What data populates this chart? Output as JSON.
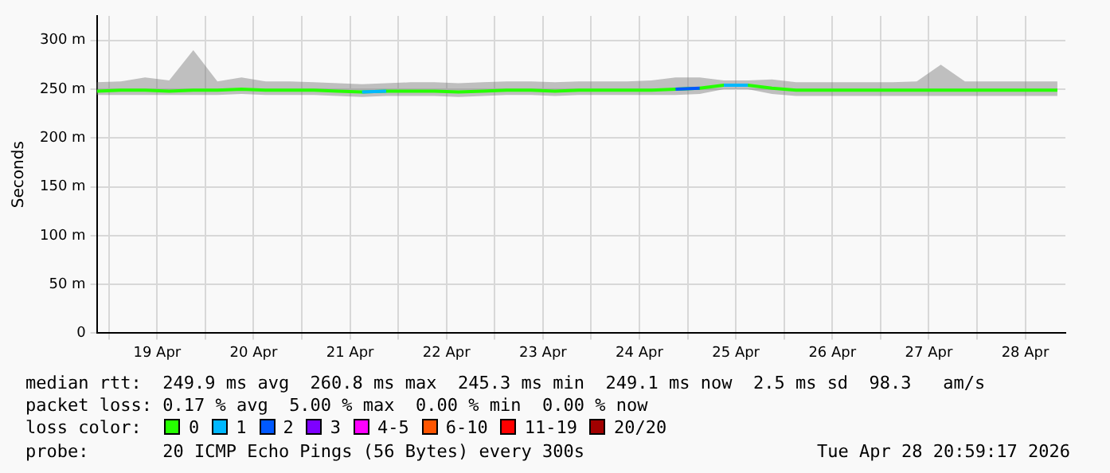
{
  "chart_data": {
    "type": "line",
    "ylabel": "Seconds",
    "x": [
      "2026-04-18T21:00",
      "2026-04-19T03:00",
      "2026-04-19T09:00",
      "2026-04-19T15:00",
      "2026-04-19T21:00",
      "2026-04-20T03:00",
      "2026-04-20T09:00",
      "2026-04-20T15:00",
      "2026-04-20T21:00",
      "2026-04-21T03:00",
      "2026-04-21T09:00",
      "2026-04-21T15:00",
      "2026-04-21T21:00",
      "2026-04-22T03:00",
      "2026-04-22T09:00",
      "2026-04-22T15:00",
      "2026-04-22T21:00",
      "2026-04-23T03:00",
      "2026-04-23T09:00",
      "2026-04-23T15:00",
      "2026-04-23T21:00",
      "2026-04-24T03:00",
      "2026-04-24T09:00",
      "2026-04-24T15:00",
      "2026-04-24T21:00",
      "2026-04-25T03:00",
      "2026-04-25T09:00",
      "2026-04-25T15:00",
      "2026-04-25T21:00",
      "2026-04-26T03:00",
      "2026-04-26T09:00",
      "2026-04-26T15:00",
      "2026-04-26T21:00",
      "2026-04-27T03:00",
      "2026-04-27T09:00",
      "2026-04-27T15:00",
      "2026-04-27T21:00",
      "2026-04-28T03:00",
      "2026-04-28T09:00",
      "2026-04-28T15:00",
      "2026-04-28T20:00"
    ],
    "series": [
      {
        "name": "0",
        "color": "#26ff00",
        "values": [
          248,
          249,
          249,
          248,
          249,
          249,
          250,
          249,
          249,
          249,
          248,
          247,
          248,
          248,
          248,
          247,
          248,
          249,
          249,
          248,
          249,
          249,
          249,
          249,
          250,
          251,
          254,
          254,
          251,
          249,
          249,
          249,
          249,
          249,
          249,
          249,
          249,
          249,
          249,
          249,
          249
        ],
        "lower": [
          244,
          244,
          244,
          244,
          244,
          244,
          245,
          244,
          244,
          244,
          243,
          242,
          243,
          243,
          243,
          242,
          243,
          244,
          244,
          243,
          244,
          244,
          244,
          244,
          244,
          245,
          250,
          250,
          245,
          243,
          243,
          243,
          243,
          243,
          243,
          243,
          243,
          243,
          243,
          243,
          243
        ],
        "upper": [
          257,
          258,
          262,
          259,
          290,
          258,
          262,
          258,
          258,
          257,
          256,
          255,
          256,
          257,
          257,
          256,
          257,
          258,
          258,
          257,
          258,
          258,
          258,
          259,
          262,
          262,
          259,
          259,
          260,
          257,
          257,
          257,
          257,
          257,
          258,
          275,
          258,
          258,
          258,
          258,
          258
        ]
      },
      {
        "name": "1",
        "color": "#00b8ff",
        "x": [
          "2026-04-21T15:00",
          "2026-04-21T21:00",
          "2026-04-23T12:00",
          "2026-04-25T09:00",
          "2026-04-25T15:00"
        ],
        "values": [
          247,
          248,
          null,
          254,
          254
        ]
      },
      {
        "name": "2",
        "color": "#0059ff",
        "x": [
          "2026-04-24T21:00",
          "2026-04-25T03:00"
        ],
        "values": [
          250,
          251
        ]
      },
      {
        "name": "3",
        "color": "#7e00ff",
        "values": [
          null,
          null,
          null,
          null,
          null,
          null,
          null,
          null,
          null,
          null,
          null,
          null,
          null,
          null,
          null,
          null,
          null,
          null,
          null,
          null,
          null,
          null,
          null,
          null,
          null,
          null,
          null,
          null,
          null,
          null,
          null,
          null,
          null,
          null,
          null,
          null,
          null,
          null,
          null,
          null,
          null
        ]
      },
      {
        "name": "4-5",
        "color": "#ff00ff",
        "values": [
          null,
          null,
          null,
          null,
          null,
          null,
          null,
          null,
          null,
          null,
          null,
          null,
          null,
          null,
          null,
          null,
          null,
          null,
          null,
          null,
          null,
          null,
          null,
          null,
          null,
          null,
          null,
          null,
          null,
          null,
          null,
          null,
          null,
          null,
          null,
          null,
          null,
          null,
          null,
          null,
          null
        ]
      },
      {
        "name": "6-10",
        "color": "#ff5500",
        "values": [
          null,
          null,
          null,
          null,
          null,
          null,
          null,
          null,
          null,
          null,
          null,
          null,
          null,
          null,
          null,
          null,
          null,
          null,
          null,
          null,
          null,
          null,
          null,
          null,
          null,
          null,
          null,
          null,
          null,
          null,
          null,
          null,
          null,
          null,
          null,
          null,
          null,
          null,
          null,
          null,
          null
        ]
      },
      {
        "name": "11-19",
        "color": "#ff0000",
        "values": [
          null,
          null,
          null,
          null,
          null,
          null,
          null,
          null,
          null,
          null,
          null,
          null,
          null,
          null,
          null,
          null,
          null,
          null,
          null,
          null,
          null,
          null,
          null,
          null,
          null,
          null,
          null,
          null,
          null,
          null,
          null,
          null,
          null,
          null,
          null,
          null,
          null,
          null,
          null,
          null,
          null
        ]
      },
      {
        "name": "20/20",
        "color": "#a10000",
        "values": [
          null,
          null,
          null,
          null,
          null,
          null,
          null,
          null,
          null,
          null,
          null,
          null,
          null,
          null,
          null,
          null,
          null,
          null,
          null,
          null,
          null,
          null,
          null,
          null,
          null,
          null,
          null,
          null,
          null,
          null,
          null,
          null,
          null,
          null,
          null,
          null,
          null,
          null,
          null,
          null,
          null
        ]
      }
    ],
    "legend_title": "loss color:",
    "legend": "bottom",
    "grid": true,
    "xlim": [
      "2026-04-18T21:00",
      "2026-04-28T22:00"
    ],
    "xticks": [
      {
        "value": "2026-04-19T00:00",
        "label": null
      },
      {
        "value": "2026-04-19T12:00",
        "label": "19 Apr"
      },
      {
        "value": "2026-04-20T00:00",
        "label": null
      },
      {
        "value": "2026-04-20T12:00",
        "label": "20 Apr"
      },
      {
        "value": "2026-04-21T00:00",
        "label": null
      },
      {
        "value": "2026-04-21T12:00",
        "label": "21 Apr"
      },
      {
        "value": "2026-04-22T00:00",
        "label": null
      },
      {
        "value": "2026-04-22T12:00",
        "label": "22 Apr"
      },
      {
        "value": "2026-04-23T00:00",
        "label": null
      },
      {
        "value": "2026-04-23T12:00",
        "label": "23 Apr"
      },
      {
        "value": "2026-04-24T00:00",
        "label": null
      },
      {
        "value": "2026-04-24T12:00",
        "label": "24 Apr"
      },
      {
        "value": "2026-04-25T00:00",
        "label": null
      },
      {
        "value": "2026-04-25T12:00",
        "label": "25 Apr"
      },
      {
        "value": "2026-04-26T00:00",
        "label": null
      },
      {
        "value": "2026-04-26T12:00",
        "label": "26 Apr"
      },
      {
        "value": "2026-04-27T00:00",
        "label": null
      },
      {
        "value": "2026-04-27T12:00",
        "label": "27 Apr"
      },
      {
        "value": "2026-04-28T00:00",
        "label": null
      },
      {
        "value": "2026-04-28T12:00",
        "label": "28 Apr"
      }
    ],
    "ylim": [
      0,
      325
    ],
    "yticks": [
      0,
      {
        "value": 50,
        "label": "50 m"
      },
      {
        "value": 100,
        "label": "100 m"
      },
      {
        "value": 150,
        "label": "150 m"
      },
      {
        "value": 200,
        "label": "200 m"
      },
      {
        "value": 250,
        "label": "250 m"
      },
      {
        "value": 300,
        "label": "300 m"
      }
    ],
    "annotations": [
      "median rtt:  249.9 ms avg  260.8 ms max  245.3 ms min  249.1 ms now  2.5 ms sd  98.3   am/s",
      "packet loss: 0.17 % avg  5.00 % max  0.00 % min  0.00 % now",
      "probe:       20 ICMP Echo Pings (56 Bytes) every 300s",
      "Tue Apr 28 20:59:17 2026"
    ]
  }
}
